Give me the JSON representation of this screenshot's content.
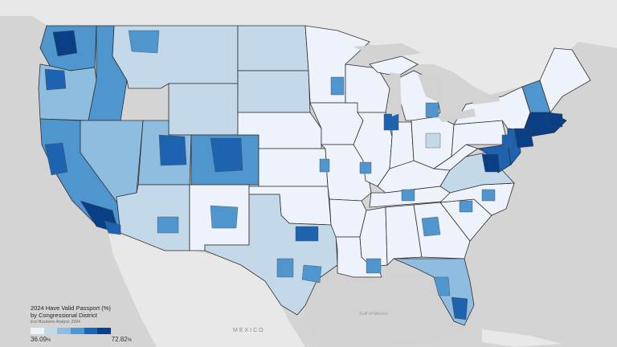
{
  "legend": {
    "title_line1": "2024 Have Valid Passport (%)",
    "title_line2": "by Congressional District",
    "source": "Esri Business Analyst, 2024",
    "min_value": "36.09",
    "max_value": "72.82",
    "unit": "%",
    "ramp_colors": [
      "#eef2fb",
      "#c3d9ea",
      "#8fbde0",
      "#4f96cf",
      "#1d63b0",
      "#0a3f86"
    ]
  },
  "labels": {
    "country_mexico": "MEXICO",
    "gulf": "Gulf of Mexico"
  },
  "colors": {
    "background": "#d6d6d6",
    "land_other": "#e7e7e7",
    "water": "#d2d2d2",
    "boundary": "#333333"
  }
}
